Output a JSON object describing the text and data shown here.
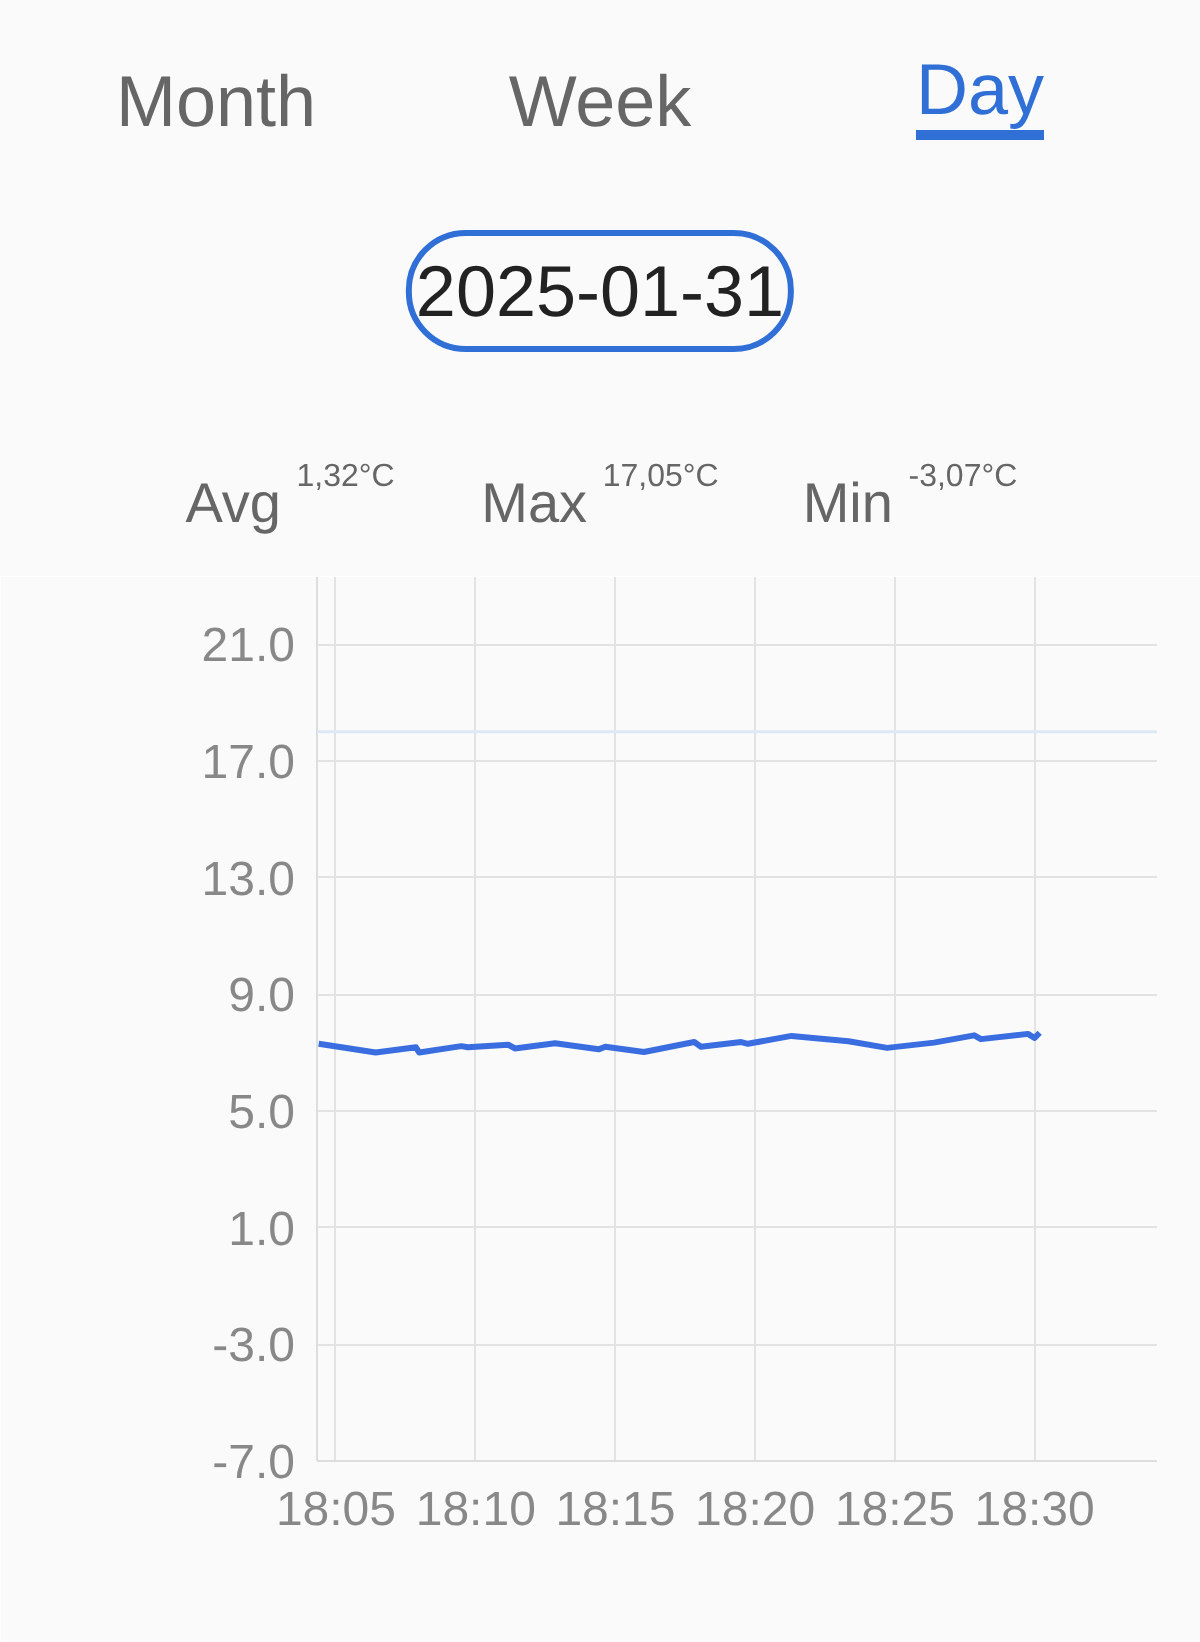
{
  "chart_data": {
    "type": "line",
    "title": "2025-01-31",
    "annotations": [
      "Month",
      "Week",
      "Day",
      "Avg $^{1,32°C}$",
      "Max $^{17,05°C}$",
      "Min $^{-3,07°C}$"
    ],
    "x": [
      18.073,
      18.107,
      18.131,
      18.133,
      18.158,
      18.162,
      18.186,
      18.19,
      18.214,
      18.24,
      18.244,
      18.267,
      18.297,
      18.301,
      18.325,
      18.329,
      18.355,
      18.389,
      18.412,
      18.44,
      18.464,
      18.468,
      18.496,
      18.5,
      18.503
    ],
    "series": [
      {
        "color": "#3a6ee0",
        "values": [
          7.3,
          7.0,
          7.18,
          7.0,
          7.22,
          7.18,
          7.27,
          7.14,
          7.32,
          7.11,
          7.2,
          7.02,
          7.36,
          7.2,
          7.36,
          7.3,
          7.57,
          7.39,
          7.16,
          7.34,
          7.59,
          7.46,
          7.64,
          7.5,
          7.68
        ]
      }
    ],
    "xlim": [
      18.072,
      18.573
    ],
    "xticks": [
      {
        "value": 18.0833,
        "label": "18:05"
      },
      {
        "value": 18.1667,
        "label": "18:10"
      },
      {
        "value": 18.25,
        "label": "18:15"
      },
      {
        "value": 18.3333,
        "label": "18:20"
      },
      {
        "value": 18.4167,
        "label": "18:25"
      },
      {
        "value": 18.5,
        "label": "18:30"
      }
    ],
    "ylim": [
      -7,
      23.3
    ],
    "yticks": [
      {
        "value": -7,
        "label": "-7.0"
      },
      {
        "value": -3,
        "label": "-3.0"
      },
      {
        "value": 1,
        "label": "1.0"
      },
      {
        "value": 5,
        "label": "5.0"
      },
      {
        "value": 9,
        "label": "9.0"
      },
      {
        "value": 13,
        "label": "13.0"
      },
      {
        "value": 17,
        "label": "17.0"
      },
      {
        "value": 21,
        "label": "21.0"
      }
    ],
    "ref_lines": [
      {
        "axis": "y",
        "value": 18,
        "label": null,
        "color": "#dce8f5"
      }
    ],
    "grid": true,
    "marker": "none",
    "line_style": "solid"
  }
}
